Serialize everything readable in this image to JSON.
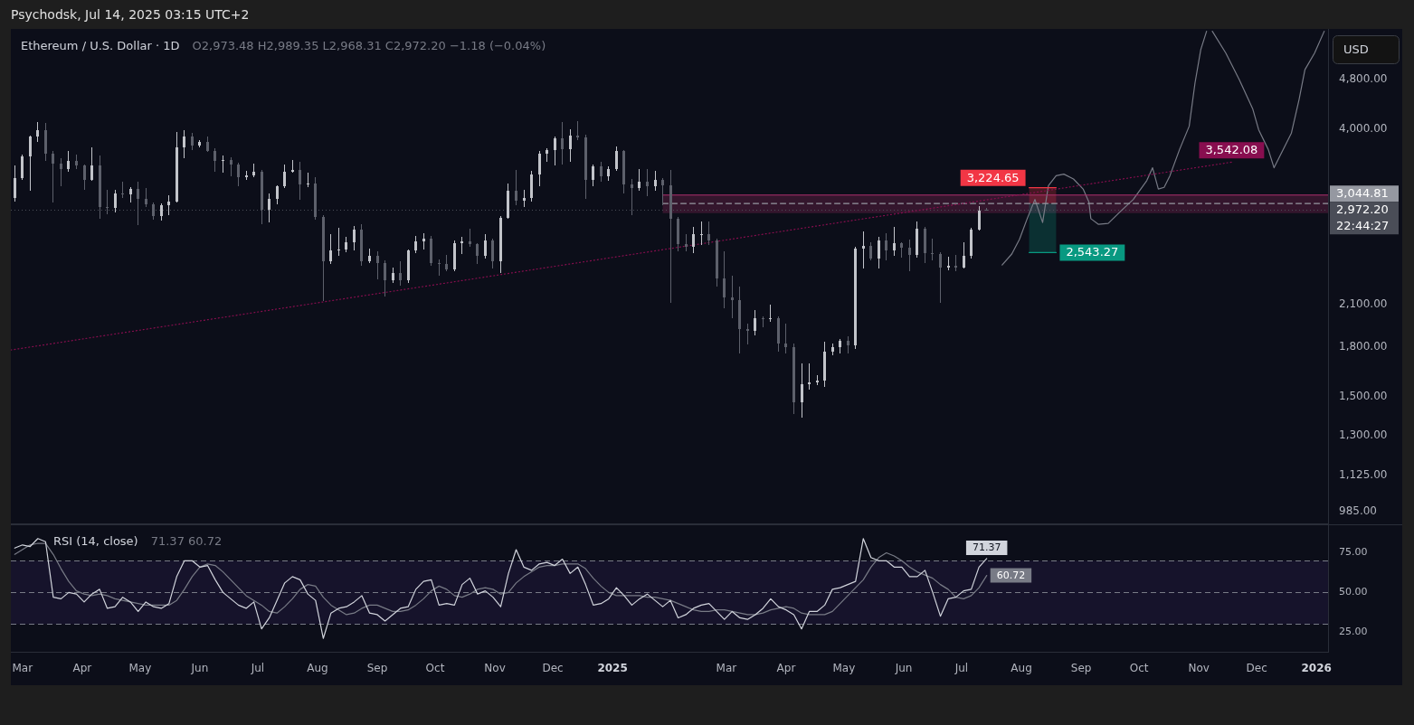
{
  "chart_data": [
    {
      "type": "candlestick",
      "title": "Ethereum / U.S. Dollar · 1D",
      "subtitle": "O2,973.48 H2,989.35 L2,968.31 C2,972.20 −1.18 (−0.04%)",
      "ylabel": "USD",
      "x": [
        "2024-02-26",
        "2024-03-01",
        "2024-03-05",
        "2024-03-09",
        "2024-03-13",
        "2024-03-17",
        "2024-03-21",
        "2024-03-25",
        "2024-03-29",
        "2024-04-02",
        "2024-04-06",
        "2024-04-10",
        "2024-04-14",
        "2024-04-18",
        "2024-04-22",
        "2024-04-26",
        "2024-04-30",
        "2024-05-04",
        "2024-05-08",
        "2024-05-12",
        "2024-05-16",
        "2024-05-20",
        "2024-05-24",
        "2024-05-28",
        "2024-06-01",
        "2024-06-05",
        "2024-06-09",
        "2024-06-13",
        "2024-06-17",
        "2024-06-21",
        "2024-06-25",
        "2024-06-29",
        "2024-07-03",
        "2024-07-07",
        "2024-07-11",
        "2024-07-15",
        "2024-07-19",
        "2024-07-23",
        "2024-07-27",
        "2024-07-31",
        "2024-08-04",
        "2024-08-08",
        "2024-08-12",
        "2024-08-16",
        "2024-08-20",
        "2024-08-24",
        "2024-08-28",
        "2024-09-01",
        "2024-09-05",
        "2024-09-09",
        "2024-09-13",
        "2024-09-17",
        "2024-09-21",
        "2024-09-25",
        "2024-09-29",
        "2024-10-03",
        "2024-10-07",
        "2024-10-11",
        "2024-10-15",
        "2024-10-19",
        "2024-10-23",
        "2024-10-27",
        "2024-10-31",
        "2024-11-04",
        "2024-11-08",
        "2024-11-12",
        "2024-11-16",
        "2024-11-20",
        "2024-11-24",
        "2024-11-28",
        "2024-12-02",
        "2024-12-06",
        "2024-12-10",
        "2024-12-14",
        "2024-12-18",
        "2024-12-22",
        "2024-12-26",
        "2024-12-30",
        "2025-01-03",
        "2025-01-07",
        "2025-01-11",
        "2025-01-15",
        "2025-01-19",
        "2025-01-23",
        "2025-01-27",
        "2025-01-31",
        "2025-02-04",
        "2025-02-08",
        "2025-02-12",
        "2025-02-16",
        "2025-02-20",
        "2025-02-24",
        "2025-02-28",
        "2025-03-04",
        "2025-03-08",
        "2025-03-12",
        "2025-03-16",
        "2025-03-20",
        "2025-03-24",
        "2025-03-28",
        "2025-04-01",
        "2025-04-05",
        "2025-04-09",
        "2025-04-13",
        "2025-04-17",
        "2025-04-21",
        "2025-04-25",
        "2025-04-29",
        "2025-05-03",
        "2025-05-07",
        "2025-05-11",
        "2025-05-15",
        "2025-05-19",
        "2025-05-23",
        "2025-05-27",
        "2025-05-31",
        "2025-06-04",
        "2025-06-08",
        "2025-06-12",
        "2025-06-16",
        "2025-06-20",
        "2025-06-24",
        "2025-06-28",
        "2025-07-02",
        "2025-07-06",
        "2025-07-10",
        "2025-07-14"
      ],
      "ohlc": [
        [
          3110,
          3490,
          3070,
          3340
        ],
        [
          3340,
          3640,
          3330,
          3620
        ],
        [
          3620,
          3900,
          3200,
          3890
        ],
        [
          3890,
          4090,
          3820,
          3980
        ],
        [
          3980,
          4080,
          3560,
          3650
        ],
        [
          3650,
          3680,
          3060,
          3520
        ],
        [
          3520,
          3590,
          3250,
          3450
        ],
        [
          3450,
          3680,
          3420,
          3560
        ],
        [
          3560,
          3630,
          3460,
          3500
        ],
        [
          3500,
          3510,
          3210,
          3320
        ],
        [
          3320,
          3730,
          3310,
          3500
        ],
        [
          3500,
          3620,
          2880,
          3010
        ],
        [
          3010,
          3190,
          2930,
          3000
        ],
        [
          3000,
          3200,
          2950,
          3160
        ],
        [
          3160,
          3290,
          3110,
          3150
        ],
        [
          3150,
          3230,
          3060,
          3210
        ],
        [
          3210,
          3290,
          2820,
          3100
        ],
        [
          3100,
          3220,
          3010,
          3040
        ],
        [
          3040,
          3050,
          2870,
          2910
        ],
        [
          2910,
          3040,
          2860,
          3030
        ],
        [
          3030,
          3130,
          2920,
          3070
        ],
        [
          3070,
          3950,
          3060,
          3740
        ],
        [
          3740,
          3980,
          3600,
          3890
        ],
        [
          3890,
          3930,
          3710,
          3760
        ],
        [
          3760,
          3830,
          3740,
          3810
        ],
        [
          3810,
          3890,
          3680,
          3690
        ],
        [
          3690,
          3720,
          3420,
          3560
        ],
        [
          3560,
          3620,
          3410,
          3570
        ],
        [
          3570,
          3600,
          3370,
          3510
        ],
        [
          3510,
          3530,
          3250,
          3350
        ],
        [
          3350,
          3430,
          3330,
          3380
        ],
        [
          3380,
          3520,
          3360,
          3420
        ],
        [
          3420,
          3440,
          2830,
          2980
        ],
        [
          2980,
          3150,
          2850,
          3100
        ],
        [
          3100,
          3250,
          3040,
          3240
        ],
        [
          3240,
          3510,
          3230,
          3420
        ],
        [
          3420,
          3560,
          3410,
          3440
        ],
        [
          3440,
          3540,
          3090,
          3260
        ],
        [
          3260,
          3400,
          3240,
          3280
        ],
        [
          3280,
          3350,
          2870,
          2900
        ],
        [
          2900,
          2910,
          2130,
          2460
        ],
        [
          2460,
          2720,
          2440,
          2560
        ],
        [
          2560,
          2780,
          2520,
          2570
        ],
        [
          2570,
          2690,
          2550,
          2640
        ],
        [
          2640,
          2800,
          2570,
          2770
        ],
        [
          2770,
          2820,
          2430,
          2460
        ],
        [
          2460,
          2580,
          2450,
          2510
        ],
        [
          2510,
          2550,
          2310,
          2450
        ],
        [
          2450,
          2470,
          2170,
          2300
        ],
        [
          2300,
          2400,
          2280,
          2360
        ],
        [
          2360,
          2460,
          2260,
          2300
        ],
        [
          2300,
          2570,
          2280,
          2560
        ],
        [
          2560,
          2700,
          2540,
          2650
        ],
        [
          2650,
          2730,
          2580,
          2680
        ],
        [
          2680,
          2700,
          2430,
          2450
        ],
        [
          2450,
          2480,
          2340,
          2440
        ],
        [
          2440,
          2520,
          2380,
          2390
        ],
        [
          2390,
          2650,
          2380,
          2630
        ],
        [
          2630,
          2690,
          2530,
          2650
        ],
        [
          2650,
          2770,
          2600,
          2620
        ],
        [
          2620,
          2630,
          2440,
          2510
        ],
        [
          2510,
          2720,
          2490,
          2660
        ],
        [
          2660,
          2670,
          2400,
          2460
        ],
        [
          2460,
          2900,
          2360,
          2890
        ],
        [
          2890,
          3270,
          2880,
          3190
        ],
        [
          3190,
          3440,
          3030,
          3080
        ],
        [
          3080,
          3200,
          3010,
          3110
        ],
        [
          3110,
          3430,
          3070,
          3390
        ],
        [
          3390,
          3690,
          3250,
          3650
        ],
        [
          3650,
          3720,
          3550,
          3700
        ],
        [
          3700,
          3890,
          3500,
          3870
        ],
        [
          3870,
          4100,
          3520,
          3720
        ],
        [
          3720,
          3990,
          3550,
          3910
        ],
        [
          3910,
          4110,
          3840,
          3880
        ],
        [
          3880,
          3910,
          3100,
          3320
        ],
        [
          3320,
          3500,
          3250,
          3490
        ],
        [
          3490,
          3540,
          3300,
          3360
        ],
        [
          3360,
          3480,
          3310,
          3450
        ],
        [
          3450,
          3740,
          3440,
          3690
        ],
        [
          3690,
          3700,
          3160,
          3260
        ],
        [
          3260,
          3330,
          2920,
          3220
        ],
        [
          3220,
          3450,
          3200,
          3300
        ],
        [
          3300,
          3450,
          3130,
          3240
        ],
        [
          3240,
          3420,
          3200,
          3320
        ],
        [
          3320,
          3340,
          3030,
          3250
        ],
        [
          3250,
          3440,
          2120,
          2880
        ],
        [
          2880,
          2890,
          2560,
          2620
        ],
        [
          2620,
          2720,
          2560,
          2600
        ],
        [
          2600,
          2790,
          2540,
          2720
        ],
        [
          2720,
          2850,
          2620,
          2720
        ],
        [
          2720,
          2850,
          2620,
          2660
        ],
        [
          2660,
          2670,
          2250,
          2310
        ],
        [
          2310,
          2550,
          2080,
          2160
        ],
        [
          2160,
          2330,
          2000,
          2140
        ],
        [
          2140,
          2240,
          1760,
          1920
        ],
        [
          1920,
          1960,
          1820,
          1910
        ],
        [
          1910,
          2060,
          1880,
          2000
        ],
        [
          2000,
          2010,
          1940,
          1990
        ],
        [
          1990,
          2100,
          1980,
          2000
        ],
        [
          2000,
          2010,
          1770,
          1820
        ],
        [
          1820,
          1960,
          1760,
          1800
        ],
        [
          1800,
          1820,
          1410,
          1470
        ],
        [
          1470,
          1690,
          1390,
          1570
        ],
        [
          1570,
          1690,
          1540,
          1580
        ],
        [
          1580,
          1620,
          1570,
          1590
        ],
        [
          1590,
          1830,
          1560,
          1770
        ],
        [
          1770,
          1820,
          1750,
          1800
        ],
        [
          1800,
          1850,
          1760,
          1840
        ],
        [
          1840,
          1870,
          1760,
          1810
        ],
        [
          1810,
          2590,
          1790,
          2580
        ],
        [
          2580,
          2740,
          2400,
          2610
        ],
        [
          2610,
          2640,
          2480,
          2490
        ],
        [
          2490,
          2690,
          2400,
          2660
        ],
        [
          2660,
          2730,
          2480,
          2560
        ],
        [
          2560,
          2790,
          2520,
          2630
        ],
        [
          2630,
          2640,
          2500,
          2590
        ],
        [
          2590,
          2660,
          2380,
          2520
        ],
        [
          2520,
          2850,
          2500,
          2780
        ],
        [
          2780,
          2790,
          2450,
          2540
        ],
        [
          2540,
          2670,
          2480,
          2530
        ],
        [
          2530,
          2540,
          2120,
          2410
        ],
        [
          2410,
          2500,
          2390,
          2420
        ],
        [
          2420,
          2520,
          2380,
          2410
        ],
        [
          2410,
          2640,
          2400,
          2510
        ],
        [
          2510,
          2780,
          2490,
          2770
        ],
        [
          2770,
          3010,
          2760,
          2970
        ],
        [
          2973.48,
          2989.35,
          2968.31,
          2972.2
        ]
      ],
      "colors": [
        "#c2c4ca",
        "#c2c4ca",
        "#c2c4ca",
        "#c2c4ca",
        "#5d606b",
        "#5d606b",
        "#5d606b",
        "#c2c4ca",
        "#5d606b",
        "#5d606b",
        "#c2c4ca",
        "#5d606b",
        "#5d606b",
        "#c2c4ca",
        "#5d606b",
        "#c2c4ca",
        "#5d606b",
        "#5d606b",
        "#5d606b",
        "#c2c4ca",
        "#c2c4ca",
        "#c2c4ca",
        "#c2c4ca",
        "#5d606b",
        "#c2c4ca",
        "#5d606b",
        "#5d606b",
        "#c2c4ca",
        "#5d606b",
        "#5d606b",
        "#c2c4ca",
        "#c2c4ca",
        "#5d606b",
        "#c2c4ca",
        "#c2c4ca",
        "#c2c4ca",
        "#c2c4ca",
        "#5d606b",
        "#c2c4ca",
        "#5d606b",
        "#5d606b",
        "#c2c4ca",
        "#c2c4ca",
        "#c2c4ca",
        "#c2c4ca",
        "#5d606b",
        "#c2c4ca",
        "#5d606b",
        "#5d606b",
        "#c2c4ca",
        "#5d606b",
        "#c2c4ca",
        "#c2c4ca",
        "#c2c4ca",
        "#5d606b",
        "#5d606b",
        "#5d606b",
        "#c2c4ca",
        "#c2c4ca",
        "#5d606b",
        "#5d606b",
        "#c2c4ca",
        "#5d606b",
        "#c2c4ca",
        "#c2c4ca",
        "#5d606b",
        "#c2c4ca",
        "#c2c4ca",
        "#c2c4ca",
        "#c2c4ca",
        "#c2c4ca",
        "#5d606b",
        "#c2c4ca",
        "#5d606b",
        "#5d606b",
        "#c2c4ca",
        "#5d606b",
        "#c2c4ca",
        "#c2c4ca",
        "#5d606b",
        "#5d606b",
        "#c2c4ca",
        "#5d606b",
        "#c2c4ca",
        "#5d606b",
        "#5d606b",
        "#5d606b",
        "#5d606b",
        "#c2c4ca",
        "#c2c4ca",
        "#5d606b",
        "#5d606b",
        "#5d606b",
        "#5d606b",
        "#5d606b",
        "#5d606b",
        "#c2c4ca",
        "#5d606b",
        "#c2c4ca",
        "#5d606b",
        "#5d606b",
        "#5d606b",
        "#c2c4ca",
        "#c2c4ca",
        "#c2c4ca",
        "#c2c4ca",
        "#c2c4ca",
        "#c2c4ca",
        "#5d606b",
        "#c2c4ca",
        "#c2c4ca",
        "#5d606b",
        "#c2c4ca",
        "#5d606b",
        "#c2c4ca",
        "#5d606b",
        "#5d606b",
        "#c2c4ca",
        "#5d606b",
        "#5d606b",
        "#5d606b",
        "#c2c4ca",
        "#5d606b",
        "#c2c4ca",
        "#c2c4ca",
        "#c2c4ca",
        "#5d606b"
      ],
      "series": [
        {
          "type": "line",
          "x": [
            "2024-02-24",
            "2025-11-18"
          ],
          "values": [
            1780,
            3542.08
          ],
          "color": "#880e4f",
          "line_style": "dotted",
          "value_labels": [
            null,
            "3,542.08"
          ]
        },
        {
          "type": "line",
          "x": [
            "2025-01-27",
            "2026-01-07"
          ],
          "values": [
            3140,
            3140
          ],
          "lower": [
            2940,
            2940
          ],
          "upper": [
            3140,
            3140
          ],
          "color": "#ac2f6c"
        },
        {
          "type": "line",
          "x": [
            "2025-01-27",
            "2026-01-07"
          ],
          "values": [
            3044.81,
            3044.81
          ],
          "color": "#9598a1",
          "line_style": "dashed",
          "value_labels": [
            null,
            "3,044.81"
          ]
        },
        {
          "type": "line",
          "x": [
            "2025-08-05",
            "2025-08-19"
          ],
          "values": [
            3224.65,
            3224.65
          ],
          "lower": [
            3044.81,
            3044.81
          ],
          "upper": [
            3224.65,
            3224.65
          ],
          "color": "#f23645",
          "value_labels": [
            "3,224.65",
            null
          ]
        },
        {
          "type": "line",
          "x": [
            "2025-08-05",
            "2025-08-19"
          ],
          "values": [
            2543.27,
            2543.27
          ],
          "lower": [
            2543.27,
            2543.27
          ],
          "upper": [
            3044.81,
            3044.81
          ],
          "color": "#089981",
          "value_labels": [
            null,
            "2,543.27"
          ]
        },
        {
          "type": "line",
          "x": [
            "2025-07-22",
            "2025-07-27",
            "2025-07-31",
            "2025-08-04",
            "2025-08-08",
            "2025-08-12",
            "2025-08-15",
            "2025-08-19",
            "2025-08-23",
            "2025-08-28",
            "2025-09-02",
            "2025-09-05",
            "2025-09-06",
            "2025-09-10",
            "2025-09-15",
            "2025-09-21",
            "2025-09-28",
            "2025-10-05",
            "2025-10-08",
            "2025-10-11",
            "2025-10-14",
            "2025-10-17",
            "2025-10-22",
            "2025-10-27",
            "2025-10-30",
            "2025-11-02",
            "2025-11-05",
            "2025-11-07",
            "2025-11-08",
            "2025-11-15",
            "2025-11-22",
            "2025-11-29",
            "2025-12-02",
            "2025-12-07",
            "2025-12-10",
            "2025-12-13",
            "2025-12-19",
            "2025-12-23",
            "2025-12-26",
            "2025-12-31",
            "2026-01-05"
          ],
          "values": [
            2430,
            2530,
            2670,
            2880,
            3090,
            2840,
            3250,
            3370,
            3390,
            3330,
            3210,
            3060,
            2880,
            2820,
            2830,
            2950,
            3090,
            3310,
            3470,
            3210,
            3230,
            3370,
            3710,
            4040,
            4730,
            5350,
            5720,
            null,
            5720,
            5280,
            4790,
            4300,
            3990,
            3710,
            3470,
            3620,
            3940,
            4460,
            4970,
            5280,
            5720
          ],
          "color": "#787b86"
        }
      ],
      "xlim": [
        "2024-02-24",
        "2026-01-07"
      ],
      "ylim": [
        940,
        5770
      ],
      "log": true,
      "tick_labels": "y",
      "yticks": [
        {
          "value": 985,
          "label": "985.00"
        },
        {
          "value": 1125,
          "label": "1,125.00"
        },
        {
          "value": 1300,
          "label": "1,300.00"
        },
        {
          "value": 1500,
          "label": "1,500.00"
        },
        {
          "value": 1800,
          "label": "1,800.00"
        },
        {
          "value": 2100,
          "label": "2,100.00"
        },
        {
          "value": 4000,
          "label": "4,000.00"
        },
        {
          "value": 4800,
          "label": "4,800.00"
        }
      ],
      "ref_lines": [
        {
          "axis": "y",
          "value": 2972.2,
          "label": "2,972.20",
          "line_style": "dotted",
          "color": "#4a4d57"
        }
      ],
      "annotations": [
        "Psychodsk, Jul 14, 2025 03:15 UTC+2",
        "22:44:27"
      ]
    },
    {
      "type": "line",
      "title": "RSI (14, close)",
      "subtitle": "71.37 60.72",
      "x": [
        "2024-02-26",
        "2024-03-01",
        "2024-03-05",
        "2024-03-09",
        "2024-03-13",
        "2024-03-17",
        "2024-03-21",
        "2024-03-25",
        "2024-03-29",
        "2024-04-02",
        "2024-04-06",
        "2024-04-10",
        "2024-04-14",
        "2024-04-18",
        "2024-04-22",
        "2024-04-26",
        "2024-04-30",
        "2024-05-04",
        "2024-05-08",
        "2024-05-12",
        "2024-05-16",
        "2024-05-20",
        "2024-05-24",
        "2024-05-28",
        "2024-06-01",
        "2024-06-05",
        "2024-06-09",
        "2024-06-13",
        "2024-06-17",
        "2024-06-21",
        "2024-06-25",
        "2024-06-29",
        "2024-07-03",
        "2024-07-07",
        "2024-07-11",
        "2024-07-15",
        "2024-07-19",
        "2024-07-23",
        "2024-07-27",
        "2024-07-31",
        "2024-08-04",
        "2024-08-08",
        "2024-08-12",
        "2024-08-16",
        "2024-08-20",
        "2024-08-24",
        "2024-08-28",
        "2024-09-01",
        "2024-09-05",
        "2024-09-09",
        "2024-09-13",
        "2024-09-17",
        "2024-09-21",
        "2024-09-25",
        "2024-09-29",
        "2024-10-03",
        "2024-10-07",
        "2024-10-11",
        "2024-10-15",
        "2024-10-19",
        "2024-10-23",
        "2024-10-27",
        "2024-10-31",
        "2024-11-04",
        "2024-11-08",
        "2024-11-12",
        "2024-11-16",
        "2024-11-20",
        "2024-11-24",
        "2024-11-28",
        "2024-12-02",
        "2024-12-06",
        "2024-12-10",
        "2024-12-14",
        "2024-12-18",
        "2024-12-22",
        "2024-12-26",
        "2024-12-30",
        "2025-01-03",
        "2025-01-07",
        "2025-01-11",
        "2025-01-15",
        "2025-01-19",
        "2025-01-23",
        "2025-01-27",
        "2025-01-31",
        "2025-02-04",
        "2025-02-08",
        "2025-02-12",
        "2025-02-16",
        "2025-02-20",
        "2025-02-24",
        "2025-02-28",
        "2025-03-04",
        "2025-03-08",
        "2025-03-12",
        "2025-03-16",
        "2025-03-20",
        "2025-03-24",
        "2025-03-28",
        "2025-04-01",
        "2025-04-05",
        "2025-04-09",
        "2025-04-13",
        "2025-04-17",
        "2025-04-21",
        "2025-04-25",
        "2025-04-29",
        "2025-05-03",
        "2025-05-07",
        "2025-05-11",
        "2025-05-15",
        "2025-05-19",
        "2025-05-23",
        "2025-05-27",
        "2025-05-31",
        "2025-06-04",
        "2025-06-08",
        "2025-06-12",
        "2025-06-16",
        "2025-06-20",
        "2025-06-24",
        "2025-06-28",
        "2025-07-02",
        "2025-07-06",
        "2025-07-10",
        "2025-07-14"
      ],
      "series": [
        {
          "color": "#d1d4dc",
          "values": [
            78,
            80,
            79,
            84,
            82,
            47,
            46,
            50,
            49,
            44,
            49,
            52,
            40,
            41,
            47,
            44,
            38,
            44,
            41,
            40,
            43,
            60,
            70,
            70,
            66,
            67,
            58,
            50,
            46,
            42,
            40,
            44,
            27,
            34,
            45,
            56,
            60,
            58,
            49,
            45,
            21,
            37,
            40,
            41,
            44,
            48,
            37,
            36,
            32,
            36,
            40,
            41,
            52,
            57,
            58,
            42,
            43,
            42,
            55,
            59,
            49,
            51,
            47,
            41,
            62,
            77,
            66,
            64,
            68,
            69,
            67,
            71,
            62,
            66,
            55,
            42,
            43,
            46,
            53,
            48,
            42,
            46,
            49,
            45,
            41,
            45,
            34,
            36,
            40,
            42,
            43,
            38,
            33,
            38,
            34,
            33,
            36,
            40,
            46,
            41,
            39,
            36,
            27,
            38,
            38,
            42,
            52,
            53,
            55,
            57,
            84,
            72,
            70,
            70,
            66,
            66,
            60,
            60,
            64,
            50,
            35,
            46,
            47,
            51,
            52,
            66,
            71.37
          ],
          "value_labels": [
            null,
            null,
            null,
            null,
            null,
            null,
            null,
            null,
            null,
            null,
            null,
            null,
            null,
            null,
            null,
            null,
            null,
            null,
            null,
            null,
            null,
            null,
            null,
            null,
            null,
            null,
            null,
            null,
            null,
            null,
            null,
            null,
            null,
            null,
            null,
            null,
            null,
            null,
            null,
            null,
            null,
            null,
            null,
            null,
            null,
            null,
            null,
            null,
            null,
            null,
            null,
            null,
            null,
            null,
            null,
            null,
            null,
            null,
            null,
            null,
            null,
            null,
            null,
            null,
            null,
            null,
            null,
            null,
            null,
            null,
            null,
            null,
            null,
            null,
            null,
            null,
            null,
            null,
            null,
            null,
            null,
            null,
            null,
            null,
            null,
            null,
            null,
            null,
            null,
            null,
            null,
            null,
            null,
            null,
            null,
            null,
            null,
            null,
            null,
            null,
            null,
            null,
            null,
            null,
            null,
            null,
            null,
            null,
            null,
            null,
            null,
            null,
            null,
            null,
            null,
            null,
            null,
            null,
            null,
            null,
            null,
            null,
            null,
            null,
            null,
            null,
            "71.37"
          ]
        },
        {
          "color": "#787b86",
          "values": [
            74,
            77,
            80,
            81,
            81,
            74,
            65,
            57,
            51,
            49,
            48,
            49,
            48,
            46,
            45,
            44,
            43,
            42,
            42,
            42,
            42,
            45,
            52,
            60,
            66,
            68,
            67,
            63,
            58,
            53,
            48,
            45,
            42,
            38,
            37,
            41,
            46,
            52,
            55,
            54,
            47,
            42,
            39,
            36,
            37,
            40,
            42,
            42,
            40,
            38,
            38,
            39,
            42,
            46,
            51,
            54,
            52,
            48,
            47,
            49,
            52,
            53,
            52,
            49,
            50,
            56,
            60,
            63,
            66,
            67,
            67,
            68,
            68,
            68,
            65,
            59,
            54,
            50,
            48,
            48,
            48,
            48,
            47,
            47,
            46,
            45,
            43,
            41,
            39,
            38,
            38,
            39,
            39,
            38,
            37,
            36,
            36,
            37,
            39,
            40,
            41,
            40,
            37,
            36,
            36,
            36,
            38,
            43,
            48,
            53,
            58,
            66,
            72,
            75,
            73,
            70,
            66,
            63,
            61,
            59,
            55,
            52,
            47,
            46,
            48,
            53,
            60.72
          ],
          "value_labels": [
            null,
            null,
            null,
            null,
            null,
            null,
            null,
            null,
            null,
            null,
            null,
            null,
            null,
            null,
            null,
            null,
            null,
            null,
            null,
            null,
            null,
            null,
            null,
            null,
            null,
            null,
            null,
            null,
            null,
            null,
            null,
            null,
            null,
            null,
            null,
            null,
            null,
            null,
            null,
            null,
            null,
            null,
            null,
            null,
            null,
            null,
            null,
            null,
            null,
            null,
            null,
            null,
            null,
            null,
            null,
            null,
            null,
            null,
            null,
            null,
            null,
            null,
            null,
            null,
            null,
            null,
            null,
            null,
            null,
            null,
            null,
            null,
            null,
            null,
            null,
            null,
            null,
            null,
            null,
            null,
            null,
            null,
            null,
            null,
            null,
            null,
            null,
            null,
            null,
            null,
            null,
            null,
            null,
            null,
            null,
            null,
            null,
            null,
            null,
            null,
            null,
            null,
            null,
            null,
            null,
            null,
            null,
            null,
            null,
            null,
            null,
            null,
            null,
            null,
            null,
            null,
            null,
            null,
            null,
            null,
            null,
            null,
            null,
            null,
            null,
            null,
            "60.72"
          ]
        }
      ],
      "xlim": [
        "2024-02-24",
        "2026-01-07"
      ],
      "ylim": [
        12,
        93
      ],
      "xticks": [
        {
          "value": "2024-03-01",
          "label": "Mar"
        },
        {
          "value": "2024-04-01",
          "label": "Apr"
        },
        {
          "value": "2024-05-01",
          "label": "May"
        },
        {
          "value": "2024-06-01",
          "label": "Jun"
        },
        {
          "value": "2024-07-01",
          "label": "Jul"
        },
        {
          "value": "2024-08-01",
          "label": "Aug"
        },
        {
          "value": "2024-09-01",
          "label": "Sep"
        },
        {
          "value": "2024-10-01",
          "label": "Oct"
        },
        {
          "value": "2024-11-01",
          "label": "Nov"
        },
        {
          "value": "2024-12-01",
          "label": "Dec"
        },
        {
          "value": "2025-01-01",
          "label": "2025"
        },
        {
          "value": "2025-03-01",
          "label": "Mar"
        },
        {
          "value": "2025-04-01",
          "label": "Apr"
        },
        {
          "value": "2025-05-01",
          "label": "May"
        },
        {
          "value": "2025-06-01",
          "label": "Jun"
        },
        {
          "value": "2025-07-01",
          "label": "Jul"
        },
        {
          "value": "2025-08-01",
          "label": "Aug"
        },
        {
          "value": "2025-09-01",
          "label": "Sep"
        },
        {
          "value": "2025-10-01",
          "label": "Oct"
        },
        {
          "value": "2025-11-01",
          "label": "Nov"
        },
        {
          "value": "2025-12-01",
          "label": "Dec"
        },
        {
          "value": "2026-01-01",
          "label": "2026"
        }
      ],
      "yticks": [
        {
          "value": 25,
          "label": "25.00"
        },
        {
          "value": 50,
          "label": "50.00"
        },
        {
          "value": 75,
          "label": "75.00"
        }
      ],
      "ref_lines": [
        {
          "axis": "y",
          "value": 70,
          "line_style": "dashed",
          "color": "#787b86"
        },
        {
          "axis": "y",
          "value": 50,
          "line_style": "dashed",
          "color": "#787b86"
        },
        {
          "axis": "y",
          "value": 30,
          "line_style": "dashed",
          "color": "#787b86"
        }
      ],
      "bands": [
        {
          "axis": "y",
          "from": 30,
          "to": 70,
          "color": "#16132b"
        }
      ]
    }
  ]
}
